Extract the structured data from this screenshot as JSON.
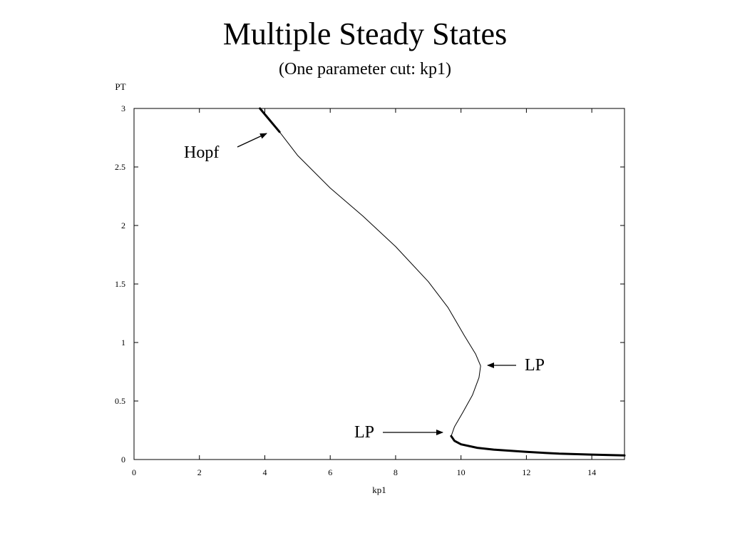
{
  "slide": {
    "title": "Multiple Steady States",
    "subtitle": "(One parameter cut: kp1)"
  },
  "chart_data": {
    "type": "line",
    "title": "",
    "xlabel": "kp1",
    "ylabel": "PT",
    "xlim": [
      0,
      15
    ],
    "ylim": [
      0,
      3
    ],
    "xticks": [
      0,
      2,
      4,
      6,
      8,
      10,
      12,
      14
    ],
    "yticks": [
      0,
      0.5,
      1,
      1.5,
      2,
      2.5,
      3
    ],
    "xtick_labels": [
      "0",
      "2",
      "4",
      "6",
      "8",
      "10",
      "12",
      "14"
    ],
    "ytick_labels": [
      "0",
      "0.5",
      "1",
      "1.5",
      "2",
      "2.5",
      "3"
    ],
    "grid": false,
    "series": [
      {
        "style": "thick",
        "x": [
          3.85,
          4.45
        ],
        "y": [
          3.0,
          2.8
        ]
      },
      {
        "style": "thin",
        "x": [
          4.45,
          5.0,
          6.0,
          7.0,
          8.0,
          9.0,
          9.6,
          10.1,
          10.45,
          10.6,
          10.55,
          10.35,
          10.05,
          9.8,
          9.7
        ],
        "y": [
          2.8,
          2.6,
          2.32,
          2.08,
          1.82,
          1.52,
          1.3,
          1.06,
          0.9,
          0.8,
          0.7,
          0.55,
          0.4,
          0.28,
          0.2
        ]
      },
      {
        "style": "thick",
        "x": [
          9.7,
          9.8,
          10.0,
          10.5,
          11.0,
          12.0,
          13.0,
          14.0,
          15.0
        ],
        "y": [
          0.2,
          0.16,
          0.13,
          0.1,
          0.085,
          0.065,
          0.05,
          0.042,
          0.035
        ]
      }
    ],
    "annotations": [
      {
        "text": "Hopf",
        "target": [
          4.45,
          2.8
        ]
      },
      {
        "text": "LP",
        "target": [
          10.8,
          0.8
        ]
      },
      {
        "text": "LP",
        "target": [
          9.65,
          0.23
        ]
      }
    ]
  }
}
